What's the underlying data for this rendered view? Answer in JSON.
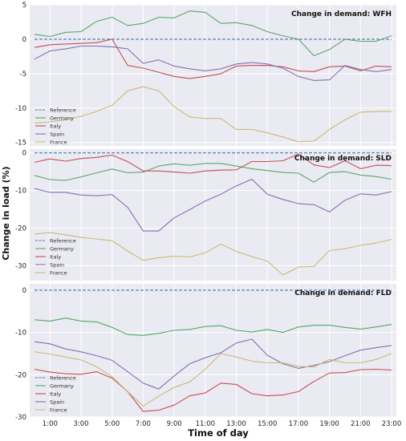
{
  "xlabel": "Time of day",
  "ylabel": "Change in load (%)",
  "x_ticks": [
    "1:00",
    "3:00",
    "5:00",
    "7:00",
    "9:00",
    "11:00",
    "13:00",
    "15:00",
    "17:00",
    "19:00",
    "21:00",
    "23:00"
  ],
  "colors": {
    "Reference": "#4c72b0",
    "Germany": "#55a868",
    "Italy": "#c44e52",
    "Spain": "#8172b2",
    "France": "#ccb974",
    "panel_bg": "#eaeaf2",
    "grid": "#ffffff"
  },
  "chart_data": [
    {
      "type": "line",
      "title": "Change in demand: WFH",
      "x": [
        0,
        1,
        2,
        3,
        4,
        5,
        6,
        7,
        8,
        9,
        10,
        11,
        12,
        13,
        14,
        15,
        16,
        17,
        18,
        19,
        20,
        21,
        22,
        23
      ],
      "ylim": [
        -15.5,
        5
      ],
      "yticks": [
        5,
        0,
        -5,
        -10,
        -15
      ],
      "grid": true,
      "legend_position": "lower-left",
      "series": [
        {
          "name": "Reference",
          "style": "dashed",
          "values": [
            0,
            0,
            0,
            0,
            0,
            0,
            0,
            0,
            0,
            0,
            0,
            0,
            0,
            0,
            0,
            0,
            0,
            0,
            0,
            0,
            0,
            0,
            0,
            0
          ]
        },
        {
          "name": "Germany",
          "values": [
            0.7,
            0.4,
            1.0,
            1.1,
            2.6,
            3.2,
            2.0,
            2.3,
            3.2,
            3.1,
            4.1,
            3.9,
            2.3,
            2.4,
            2.0,
            1.1,
            0.5,
            0.0,
            -2.4,
            -1.5,
            0.0,
            -0.3,
            -0.3,
            0.5
          ]
        },
        {
          "name": "Italy",
          "values": [
            -1.2,
            -0.8,
            -0.7,
            -0.6,
            -0.5,
            0.0,
            -3.8,
            -4.2,
            -4.8,
            -5.4,
            -5.7,
            -5.4,
            -5.0,
            -3.9,
            -3.8,
            -3.8,
            -4.0,
            -4.6,
            -4.7,
            -4.0,
            -3.9,
            -4.6,
            -3.9,
            -4.0
          ]
        },
        {
          "name": "Spain",
          "values": [
            -2.9,
            -1.7,
            -1.4,
            -1.0,
            -1.0,
            -1.1,
            -1.4,
            -3.5,
            -3.0,
            -3.9,
            -4.3,
            -4.6,
            -4.3,
            -3.6,
            -3.4,
            -3.6,
            -4.2,
            -5.4,
            -6.0,
            -5.9,
            -3.8,
            -4.4,
            -4.7,
            -4.4
          ]
        },
        {
          "name": "France",
          "values": [
            -12.2,
            -12.0,
            -11.7,
            -11.2,
            -10.5,
            -9.6,
            -7.5,
            -6.9,
            -7.5,
            -9.8,
            -11.3,
            -11.5,
            -11.5,
            -13.1,
            -13.1,
            -13.6,
            -14.2,
            -14.9,
            -14.8,
            -13.1,
            -11.7,
            -10.6,
            -10.5,
            -10.5
          ]
        }
      ]
    },
    {
      "type": "line",
      "title": "Change in demand: SLD",
      "x": [
        0,
        1,
        2,
        3,
        4,
        5,
        6,
        7,
        8,
        9,
        10,
        11,
        12,
        13,
        14,
        15,
        16,
        17,
        18,
        19,
        20,
        21,
        22,
        23
      ],
      "ylim": [
        -34,
        1
      ],
      "yticks": [
        0,
        -10,
        -20,
        -30
      ],
      "grid": true,
      "legend_position": "lower-left",
      "series": [
        {
          "name": "Reference",
          "style": "dashed",
          "values": [
            0,
            0,
            0,
            0,
            0,
            0,
            0,
            0,
            0,
            0,
            0,
            0,
            0,
            0,
            0,
            0,
            0,
            0,
            0,
            0,
            0,
            0,
            0,
            0
          ]
        },
        {
          "name": "Germany",
          "values": [
            -6.0,
            -7.1,
            -7.3,
            -6.4,
            -5.3,
            -4.3,
            -5.3,
            -5.1,
            -3.5,
            -2.9,
            -3.3,
            -2.8,
            -2.8,
            -3.5,
            -4.2,
            -4.7,
            -5.2,
            -5.4,
            -7.8,
            -5.2,
            -5.0,
            -5.9,
            -6.3,
            -7.0
          ]
        },
        {
          "name": "Italy",
          "values": [
            -2.5,
            -1.6,
            -2.2,
            -1.5,
            -1.2,
            -0.6,
            -2.3,
            -4.8,
            -4.8,
            -5.1,
            -5.4,
            -4.8,
            -4.6,
            -4.5,
            -2.3,
            -2.3,
            -2.1,
            -0.3,
            -3.2,
            -3.9,
            -2.1,
            -4.2,
            -3.3,
            -3.4
          ]
        },
        {
          "name": "Spain",
          "values": [
            -9.5,
            -10.5,
            -10.5,
            -11.2,
            -11.4,
            -11.1,
            -14.5,
            -20.8,
            -20.8,
            -17.3,
            -15.1,
            -12.8,
            -11.0,
            -8.8,
            -7.0,
            -11.0,
            -12.4,
            -13.5,
            -13.8,
            -15.7,
            -12.6,
            -10.9,
            -11.2,
            -10.3
          ]
        },
        {
          "name": "France",
          "values": [
            -21.6,
            -21.2,
            -21.8,
            -22.5,
            -22.9,
            -23.4,
            -26.1,
            -28.6,
            -27.9,
            -27.5,
            -27.7,
            -26.6,
            -24.3,
            -26.2,
            -27.6,
            -28.8,
            -32.5,
            -30.4,
            -30.2,
            -26.0,
            -25.5,
            -24.6,
            -24.0,
            -23.0
          ]
        }
      ]
    },
    {
      "type": "line",
      "title": "Change in demand: FLD",
      "x": [
        0,
        1,
        2,
        3,
        4,
        5,
        6,
        7,
        8,
        9,
        10,
        11,
        12,
        13,
        14,
        15,
        16,
        17,
        18,
        19,
        20,
        21,
        22,
        23
      ],
      "ylim": [
        -30,
        1.5
      ],
      "yticks": [
        0,
        -10,
        -20,
        -30
      ],
      "grid": true,
      "legend_position": "lower-left",
      "series": [
        {
          "name": "Reference",
          "style": "dashed",
          "values": [
            0,
            0,
            0,
            0,
            0,
            0,
            0,
            0,
            0,
            0,
            0,
            0,
            0,
            0,
            0,
            0,
            0,
            0,
            0,
            0,
            0,
            0,
            0,
            0
          ]
        },
        {
          "name": "Germany",
          "values": [
            -7.0,
            -7.3,
            -6.6,
            -7.3,
            -7.5,
            -8.8,
            -10.5,
            -10.7,
            -10.2,
            -9.5,
            -9.3,
            -8.6,
            -8.4,
            -9.5,
            -9.9,
            -9.3,
            -10.0,
            -8.7,
            -8.3,
            -8.3,
            -8.8,
            -9.2,
            -8.7,
            -8.1
          ]
        },
        {
          "name": "Italy",
          "values": [
            -18.7,
            -19.4,
            -19.8,
            -19.9,
            -19.3,
            -20.8,
            -24.0,
            -28.7,
            -28.4,
            -27.2,
            -25.0,
            -24.3,
            -22.0,
            -22.3,
            -24.5,
            -25.0,
            -24.8,
            -24.0,
            -21.6,
            -19.6,
            -19.5,
            -18.8,
            -18.7,
            -18.9
          ]
        },
        {
          "name": "Spain",
          "values": [
            -12.2,
            -12.7,
            -13.9,
            -14.6,
            -15.5,
            -16.6,
            -19.3,
            -22.0,
            -23.4,
            -20.3,
            -17.4,
            -16.0,
            -14.8,
            -12.5,
            -11.6,
            -15.4,
            -17.4,
            -18.5,
            -17.8,
            -16.9,
            -15.5,
            -14.2,
            -13.6,
            -13.1
          ]
        },
        {
          "name": "France",
          "values": [
            -14.6,
            -15.1,
            -15.8,
            -16.5,
            -18.1,
            -20.5,
            -24.0,
            -27.4,
            -25.1,
            -23.0,
            -21.7,
            -18.7,
            -15.0,
            -15.8,
            -16.8,
            -17.2,
            -17.2,
            -18.0,
            -18.2,
            -16.4,
            -17.2,
            -17.2,
            -16.4,
            -15.0
          ]
        }
      ]
    }
  ]
}
